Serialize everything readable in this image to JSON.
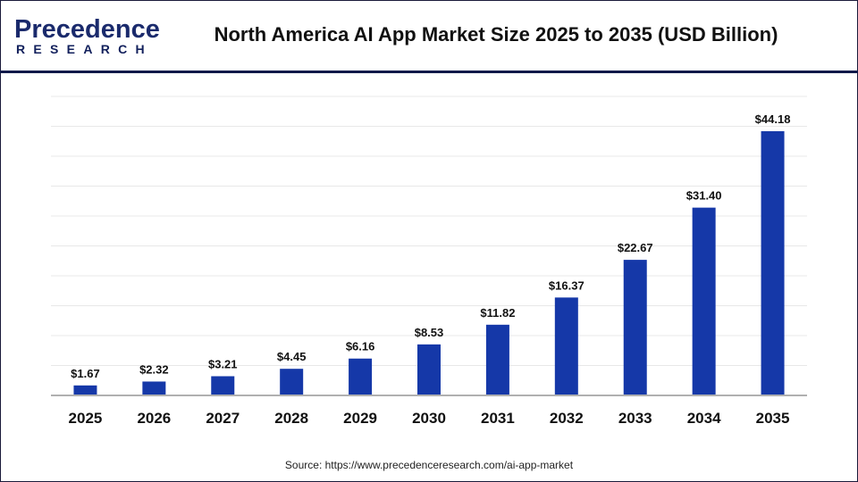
{
  "logo": {
    "line1": "Precedence",
    "line2": "RESEARCH"
  },
  "title": "North America AI App Market Size 2025 to 2035 (USD Billion)",
  "source": "Source: https://www.precedenceresearch.com/ai-app-market",
  "colors": {
    "bar": "#1538a8",
    "grid": "#e8e8e8",
    "axis": "#b0b0b0",
    "header_rule": "#0f1a4a"
  },
  "chart_data": {
    "type": "bar",
    "title": "North America AI App Market Size 2025 to 2035 (USD Billion)",
    "categories": [
      "2025",
      "2026",
      "2027",
      "2028",
      "2029",
      "2030",
      "2031",
      "2032",
      "2033",
      "2034",
      "2035"
    ],
    "values": [
      1.67,
      2.32,
      3.21,
      4.45,
      6.16,
      8.53,
      11.82,
      16.37,
      22.67,
      31.4,
      44.18
    ],
    "data_labels": [
      "$1.67",
      "$2.32",
      "$3.21",
      "$4.45",
      "$6.16",
      "$8.53",
      "$11.82",
      "$16.37",
      "$22.67",
      "$31.40",
      "$44.18"
    ],
    "xlabel": "",
    "ylabel": "",
    "ylim": [
      0,
      50
    ],
    "grid": true,
    "y_axis_labels_shown": false
  }
}
